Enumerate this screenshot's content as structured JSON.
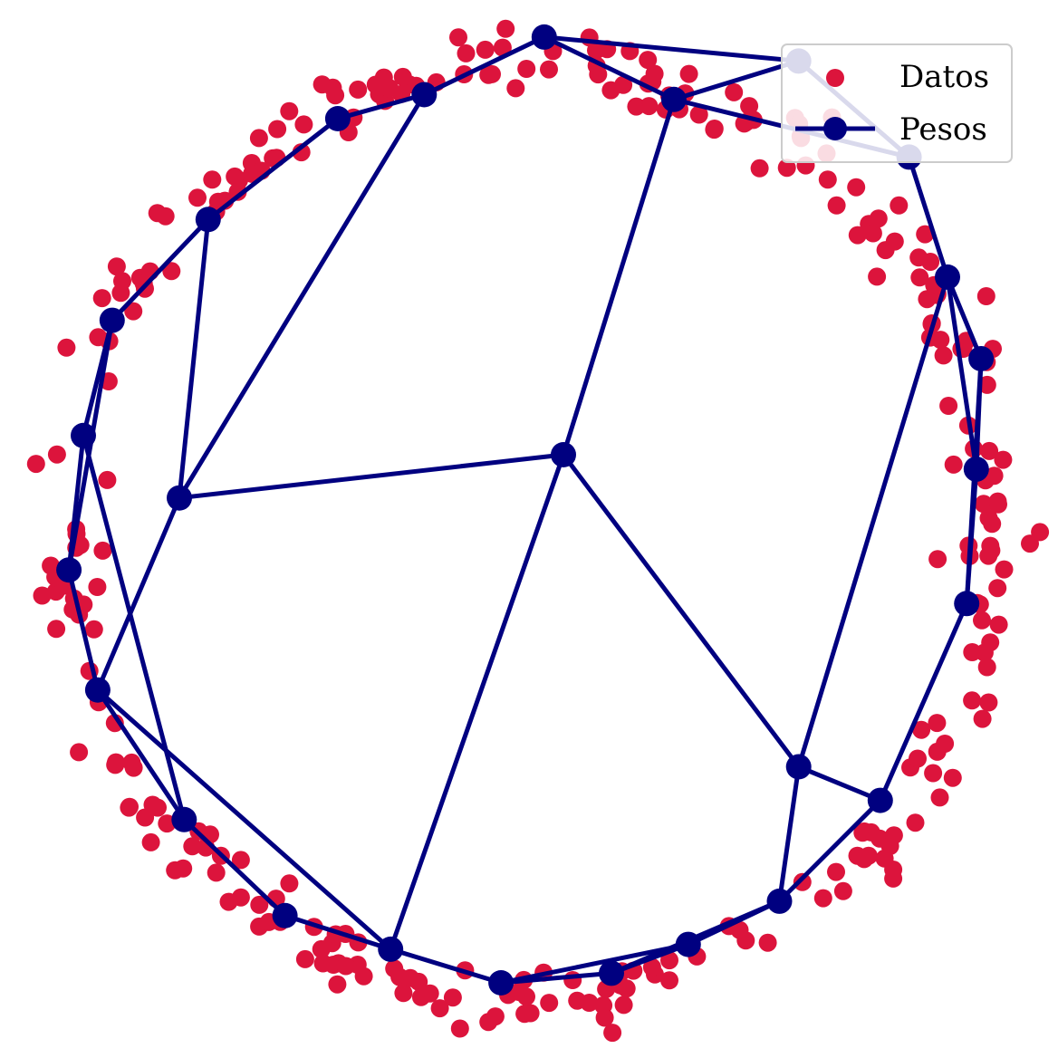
{
  "chart_data": {
    "type": "scatter",
    "title": "",
    "xlabel": "",
    "ylabel": "",
    "axes_visible": false,
    "grid": false,
    "xlim": [
      -1.1,
      1.1
    ],
    "ylim": [
      -1.1,
      1.1
    ],
    "legend": {
      "placement": "top-right",
      "entries": [
        {
          "label": "Datos",
          "marker": "circle",
          "color": "#dc143c"
        },
        {
          "label": "Pesos",
          "marker": "circle-line",
          "color": "#000080"
        }
      ]
    },
    "colors": {
      "datos": "#dc143c",
      "pesos": "#000080"
    },
    "datos": {
      "description_of_generation": "",
      "count": 300
    },
    "pesos": {
      "nodes": [
        [
          0.0,
          0.0
        ],
        [
          -0.8,
          -0.09
        ],
        [
          0.49,
          -0.65
        ],
        [
          0.23,
          0.74
        ],
        [
          -0.29,
          0.75
        ],
        [
          -0.47,
          0.7
        ],
        [
          -0.74,
          0.49
        ],
        [
          -0.94,
          0.28
        ],
        [
          -1.0,
          0.04
        ],
        [
          -1.03,
          -0.24
        ],
        [
          -0.97,
          -0.49
        ],
        [
          -0.79,
          -0.76
        ],
        [
          -0.58,
          -0.96
        ],
        [
          -0.36,
          -1.03
        ],
        [
          -0.13,
          -1.1
        ],
        [
          0.1,
          -1.08
        ],
        [
          0.26,
          -1.02
        ],
        [
          0.45,
          -0.93
        ],
        [
          0.66,
          -0.72
        ],
        [
          0.84,
          -0.31
        ],
        [
          0.86,
          -0.03
        ],
        [
          0.87,
          0.2
        ],
        [
          0.8,
          0.37
        ],
        [
          0.72,
          0.62
        ],
        [
          0.49,
          0.82
        ],
        [
          -0.04,
          0.87
        ]
      ],
      "edges": [
        [
          0,
          1
        ],
        [
          0,
          2
        ],
        [
          0,
          3
        ],
        [
          0,
          13
        ],
        [
          1,
          4
        ],
        [
          1,
          6
        ],
        [
          1,
          10
        ],
        [
          2,
          18
        ],
        [
          2,
          17
        ],
        [
          2,
          22
        ],
        [
          3,
          24
        ],
        [
          3,
          23
        ],
        [
          3,
          25
        ],
        [
          4,
          25
        ],
        [
          4,
          5
        ],
        [
          5,
          6
        ],
        [
          6,
          7
        ],
        [
          7,
          8
        ],
        [
          8,
          9
        ],
        [
          9,
          10
        ],
        [
          10,
          11
        ],
        [
          11,
          12
        ],
        [
          12,
          13
        ],
        [
          13,
          14
        ],
        [
          14,
          15
        ],
        [
          15,
          16
        ],
        [
          16,
          17
        ],
        [
          17,
          18
        ],
        [
          18,
          19
        ],
        [
          19,
          20
        ],
        [
          20,
          21
        ],
        [
          21,
          22
        ],
        [
          22,
          23
        ],
        [
          23,
          24
        ],
        [
          24,
          25
        ],
        [
          7,
          9
        ],
        [
          8,
          11
        ],
        [
          10,
          13
        ],
        [
          14,
          16
        ],
        [
          15,
          17
        ],
        [
          19,
          21
        ],
        [
          20,
          22
        ]
      ]
    }
  }
}
